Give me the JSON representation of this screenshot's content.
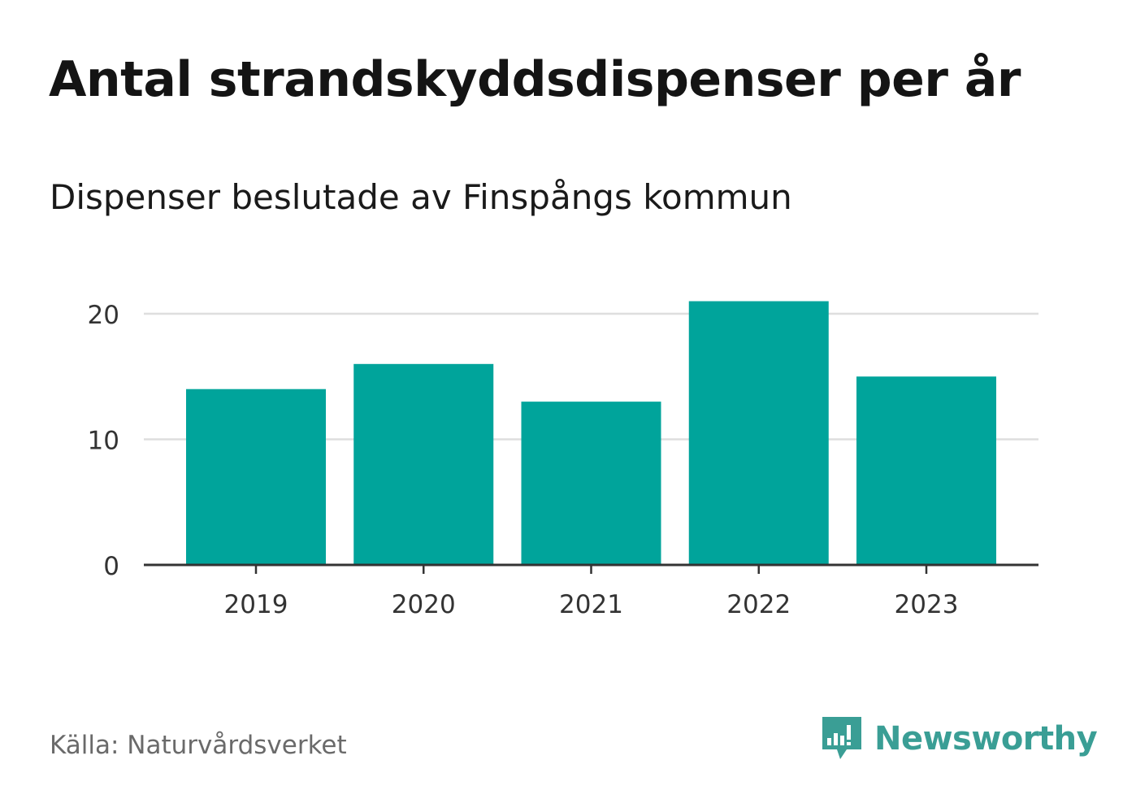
{
  "title": "Antal strandskyddsdispenser per år",
  "subtitle": "Dispenser beslutade av Finspångs kommun",
  "source": "Källa: Naturvårdsverket",
  "brand": {
    "name": "Newsworthy",
    "logo_icon": "newsworthy-chart-bubble-icon",
    "color": "#3a9e95"
  },
  "colors": {
    "bar": "#00a49b",
    "grid": "#dedede",
    "axis": "#333333",
    "tick_text": "#333333"
  },
  "chart_data": {
    "type": "bar",
    "title": "Antal strandskyddsdispenser per år",
    "subtitle": "Dispenser beslutade av Finspångs kommun",
    "categories": [
      "2019",
      "2020",
      "2021",
      "2022",
      "2023"
    ],
    "values": [
      14,
      16,
      13,
      21,
      15
    ],
    "xlabel": "",
    "ylabel": "",
    "ylim": [
      0,
      20
    ],
    "yticks": [
      0,
      10,
      20
    ],
    "ytick_labels": [
      "0",
      "10",
      "20"
    ],
    "grid": true,
    "legend": "none"
  }
}
